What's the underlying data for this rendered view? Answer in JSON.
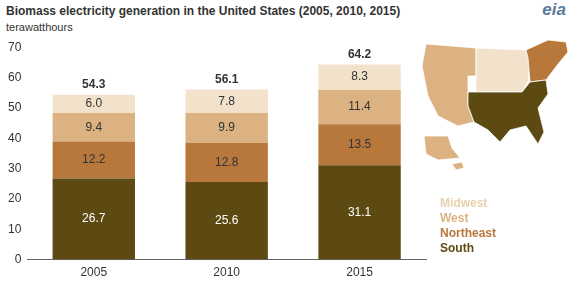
{
  "chart_data": {
    "type": "bar",
    "title": "Biomass electricity generation in the United States (2005, 2010, 2015)",
    "subtitle": "terawatthours",
    "logo": "eia",
    "categories": [
      "2005",
      "2010",
      "2015"
    ],
    "series": [
      {
        "name": "South",
        "color": "#5c4a12",
        "values": [
          26.7,
          25.6,
          31.1
        ]
      },
      {
        "name": "Northeast",
        "color": "#b8783c",
        "values": [
          12.2,
          12.8,
          13.5
        ]
      },
      {
        "name": "West",
        "color": "#dcb283",
        "values": [
          9.4,
          9.9,
          11.4
        ]
      },
      {
        "name": "Midwest",
        "color": "#f2e2cc",
        "values": [
          6.0,
          7.8,
          8.3
        ],
        "value_labels": [
          "6.0",
          "7.8",
          "8.3"
        ]
      }
    ],
    "totals": [
      54.3,
      56.1,
      64.2
    ],
    "ylim": [
      0,
      70
    ],
    "yticks": [
      0,
      10,
      20,
      30,
      40,
      50,
      60,
      70
    ],
    "stacked": true,
    "data_labels": true,
    "grid": false,
    "legend": "right"
  }
}
